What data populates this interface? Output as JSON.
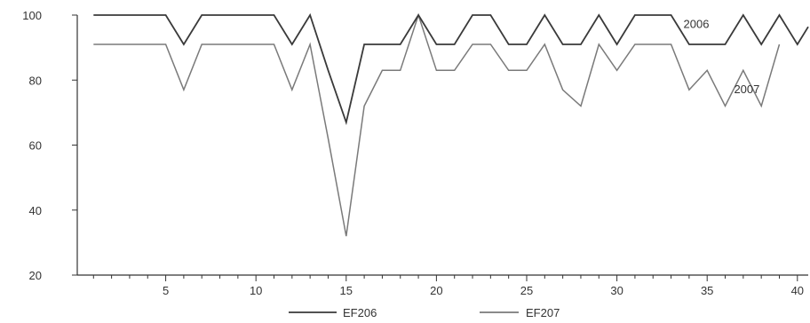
{
  "chart_data": {
    "type": "line",
    "title": "",
    "xlabel": "",
    "ylabel": "",
    "xlim": [
      0.1,
      40.6
    ],
    "ylim": [
      20,
      100
    ],
    "xticks": [
      5,
      10,
      15,
      20,
      25,
      30,
      35,
      40
    ],
    "yticks": [
      20,
      40,
      60,
      80,
      100
    ],
    "grid": false,
    "legend_position": "bottom",
    "x": [
      1,
      2,
      3,
      4,
      5,
      6,
      7,
      8,
      9,
      10,
      11,
      12,
      13,
      14,
      15,
      16,
      17,
      18,
      19,
      20,
      21,
      22,
      23,
      24,
      25,
      26,
      27,
      28,
      29,
      30,
      31,
      32,
      33,
      34,
      35,
      36,
      37,
      38,
      39,
      40,
      41
    ],
    "series": [
      {
        "name": "EF206",
        "annotation": "2006",
        "color": "#3a3a3a",
        "values": [
          100,
          100,
          100,
          100,
          100,
          91,
          100,
          100,
          100,
          100,
          100,
          91,
          100,
          83,
          67,
          91,
          91,
          91,
          100,
          91,
          91,
          100,
          100,
          91,
          91,
          100,
          91,
          91,
          100,
          91,
          100,
          100,
          100,
          91,
          91,
          91,
          100,
          91,
          100,
          91,
          100
        ]
      },
      {
        "name": "EF207",
        "annotation": "2007",
        "color": "#7a7a7a",
        "values": [
          91,
          91,
          91,
          91,
          91,
          77,
          91,
          91,
          91,
          91,
          91,
          77,
          91,
          62,
          32,
          72,
          83,
          83,
          100,
          83,
          83,
          91,
          91,
          83,
          83,
          91,
          77,
          72,
          91,
          83,
          91,
          91,
          91,
          77,
          83,
          72,
          83,
          72,
          91,
          null,
          null
        ]
      }
    ]
  }
}
